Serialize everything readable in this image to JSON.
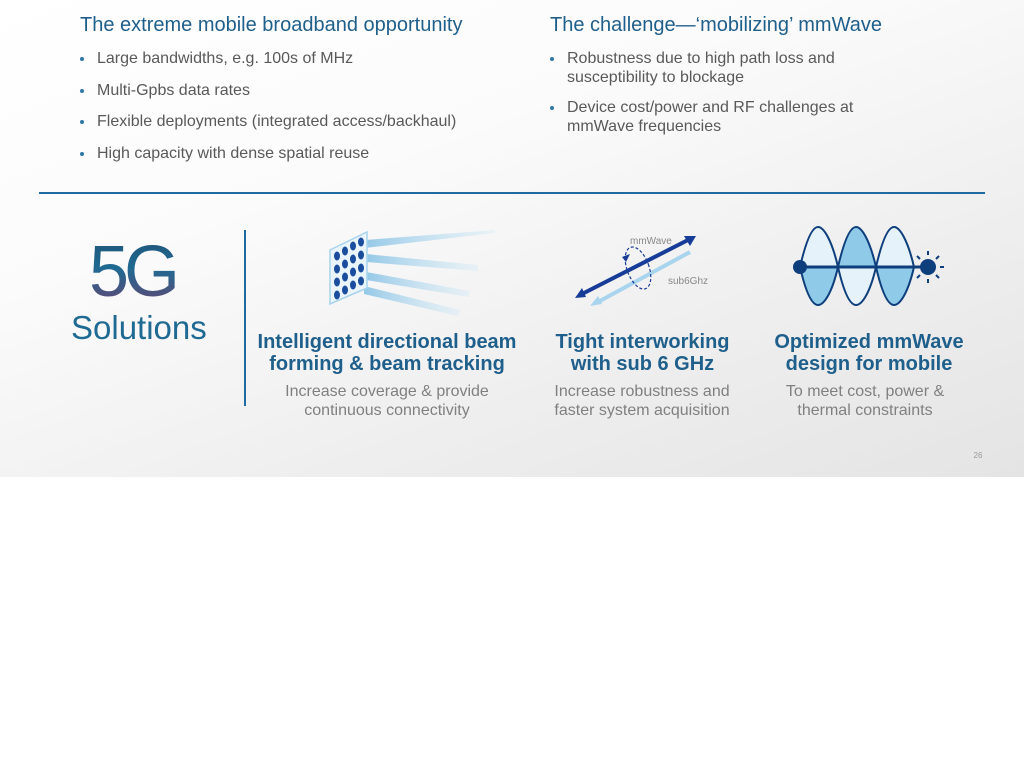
{
  "left_column": {
    "title": "The extreme mobile broadband opportunity",
    "bullets": [
      "Large bandwidths, e.g. 100s of MHz",
      "Multi-Gpbs data rates",
      "Flexible deployments (integrated access/backhaul)",
      "High capacity with dense spatial reuse"
    ]
  },
  "right_column": {
    "title": "The challenge—‘mobilizing’ mmWave",
    "bullets": [
      "Robustness due to high path loss and susceptibility to blockage",
      "Device cost/power and RF challenges at mmWave frequencies"
    ]
  },
  "logo": {
    "big": "5G",
    "sub": "Solutions"
  },
  "features": [
    {
      "icon": "antenna-array-beams-icon",
      "title_lines": [
        "Intelligent directional beam",
        "forming & beam tracking"
      ],
      "desc_lines": [
        "Increase coverage & provide",
        "continuous connectivity"
      ]
    },
    {
      "icon": "interworking-arrows-icon",
      "icon_labels": {
        "top": "mmWave",
        "bottom": "sub6Ghz"
      },
      "title_lines": [
        "Tight interworking",
        "with sub 6 GHz"
      ],
      "desc_lines": [
        "Increase robustness and",
        "faster system acquisition"
      ]
    },
    {
      "icon": "sine-wave-sun-icon",
      "title_lines": [
        "Optimized mmWave",
        "design for mobile"
      ],
      "desc_lines": [
        "To meet cost, power &",
        "thermal constraints"
      ]
    }
  ],
  "slide_number": "26",
  "colors": {
    "title_blue": "#1f5f8b",
    "accent_blue": "#1f6aa0",
    "body_gray": "#595959",
    "desc_gray": "#808080",
    "navy": "#143a8c",
    "light_blue": "#9cd0ec"
  }
}
